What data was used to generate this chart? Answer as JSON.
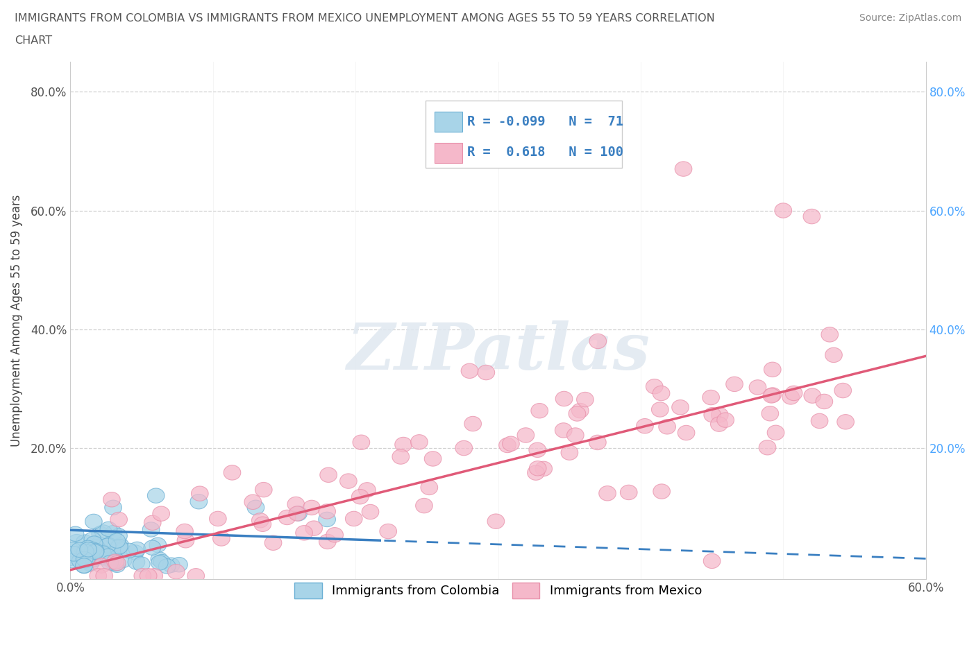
{
  "title_line1": "IMMIGRANTS FROM COLOMBIA VS IMMIGRANTS FROM MEXICO UNEMPLOYMENT AMONG AGES 55 TO 59 YEARS CORRELATION",
  "title_line2": "CHART",
  "source": "Source: ZipAtlas.com",
  "ylabel": "Unemployment Among Ages 55 to 59 years",
  "xlim": [
    0.0,
    0.6
  ],
  "ylim": [
    -0.02,
    0.85
  ],
  "colombia_color": "#a8d4e8",
  "mexico_color": "#f5b8ca",
  "colombia_edge": "#6aafd4",
  "mexico_edge": "#e890aa",
  "trendline_colombia_color": "#3a7fc1",
  "trendline_mexico_color": "#e05a78",
  "colombia_R": -0.099,
  "colombia_N": 71,
  "mexico_R": 0.618,
  "mexico_N": 100,
  "watermark": "ZIPatlas",
  "background_color": "#ffffff",
  "grid_color": "#cccccc",
  "right_axis_color": "#4da6ff",
  "left_axis_color": "#555555"
}
